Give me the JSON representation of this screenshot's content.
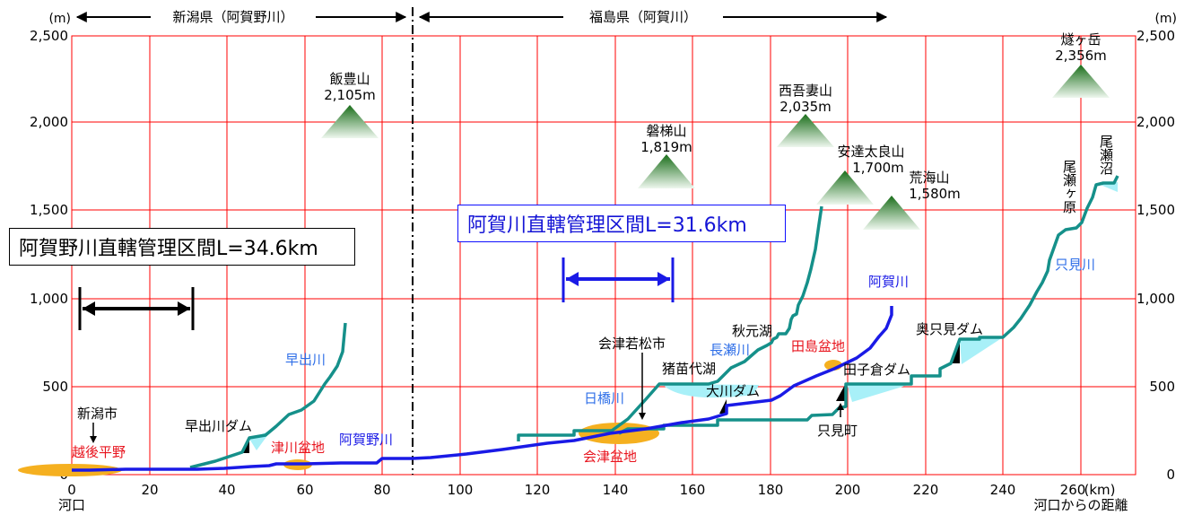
{
  "header": {
    "left_region": "新潟県（阿賀野川）",
    "right_region": "福島県（阿賀川）"
  },
  "axes": {
    "y_unit_left": "(m)",
    "y_unit_right": "(m)",
    "x_unit": "(km)",
    "x_axis_label": "河口からの距離",
    "x_origin_label": "河口",
    "y_ticks": [
      "0",
      "500",
      "1,000",
      "1,500",
      "2,000",
      "2,500"
    ],
    "x_ticks": [
      "0",
      "20",
      "40",
      "60",
      "80",
      "100",
      "120",
      "140",
      "160",
      "180",
      "200",
      "220",
      "240",
      "260"
    ]
  },
  "boxes": {
    "agano_section": "阿賀野川直轄管理区間L=34.6km",
    "aga_section": "阿賀川直轄管理区間L=31.6km"
  },
  "mountains": [
    {
      "name": "飯豊山",
      "elev": "2,105m"
    },
    {
      "name": "磐梯山",
      "elev": "1,819m"
    },
    {
      "name": "西吾妻山",
      "elev": "2,035m"
    },
    {
      "name": "安達太良山",
      "elev": "1,700m"
    },
    {
      "name": "荒海山",
      "elev": "1,580m"
    },
    {
      "name": "燧ヶ岳",
      "elev": "2,356m"
    }
  ],
  "rivers": {
    "hayade": "早出川",
    "agano": "阿賀野川",
    "hihashi": "日橋川",
    "nagase": "長瀬川",
    "aga": "阿賀川",
    "tadami": "只見川",
    "oze_marsh": "尾瀬沼",
    "oze_field": "尾瀬ヶ原"
  },
  "places": {
    "niigata_city": "新潟市",
    "aizu_wakamatsu": "会津若松市",
    "inawashiro": "猪苗代湖",
    "akimoto": "秋元湖",
    "tadami_town": "只見町"
  },
  "basins": {
    "echigo": "越後平野",
    "tsugawa": "津川盆地",
    "aizu": "会津盆地",
    "tajima": "田島盆地"
  },
  "dams": {
    "hayade_dam": "早出川ダム",
    "okawa_dam": "大川ダム",
    "tagokura_dam": "田子倉ダム",
    "okutadami_dam": "奥只見ダム"
  },
  "colors": {
    "grid": "#ff0000",
    "agano_aga_river": "#1a1ae6",
    "tributaries": "#15908a",
    "basin_fill": "#f5b020",
    "water_fill": "#a8f0f8",
    "basin_text": "#e8141e",
    "river_text": "#2f6fe8",
    "mountain_top": "#1a6e1a",
    "mountain_bottom": "#eef7ee"
  }
}
